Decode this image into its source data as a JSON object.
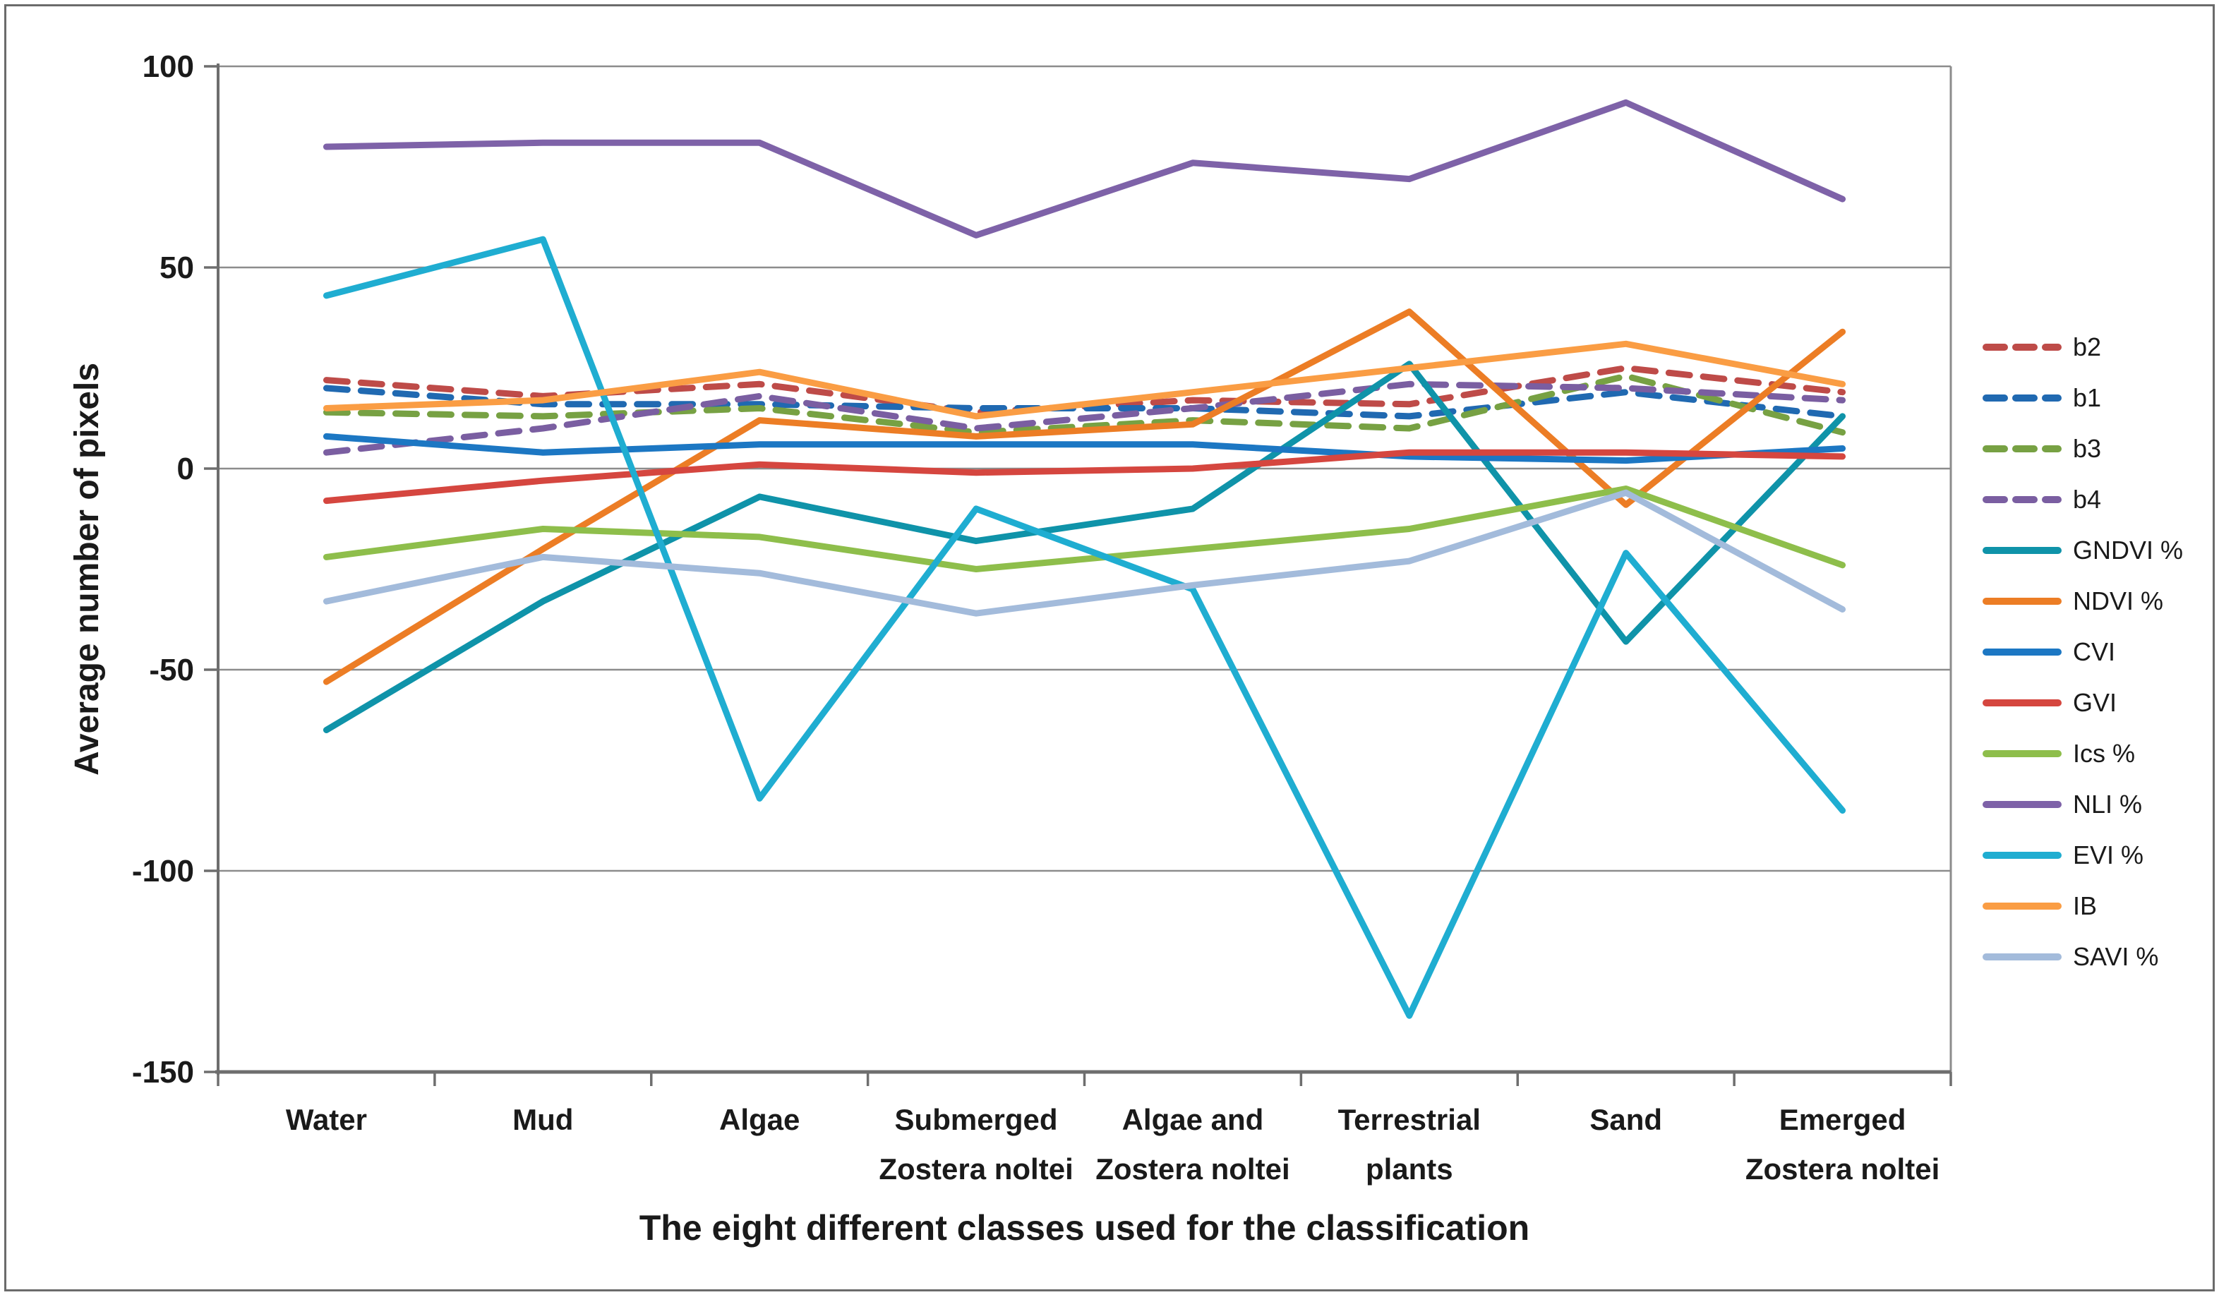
{
  "figure": {
    "y_axis_title": "Average number of pixels",
    "x_axis_title": "The eight different classes used for the classification"
  },
  "chart_data": {
    "type": "line",
    "title": "",
    "xlabel": "The eight different classes used for the classification",
    "ylabel": "Average number of pixels",
    "ylim": [
      -150,
      100
    ],
    "y_ticks": [
      100,
      50,
      0,
      -50,
      -100,
      -150
    ],
    "grid": true,
    "legend_position": "right",
    "axis_color": "#6e6e6e",
    "gridline_color": "#8c8c8c",
    "text_color": "#1a1a1a",
    "categories": [
      "Water",
      "Mud",
      "Algae",
      "Submerged Zostera noltei",
      "Algae and Zostera noltei",
      "Terrestrial plants",
      "Sand",
      "Emerged Zostera noltei"
    ],
    "category_label_lines": [
      [
        "Water"
      ],
      [
        "Mud"
      ],
      [
        "Algae"
      ],
      [
        "Submerged",
        "Zostera noltei"
      ],
      [
        "Algae and",
        "Zostera noltei"
      ],
      [
        "Terrestrial",
        "plants"
      ],
      [
        "Sand"
      ],
      [
        "Emerged",
        "Zostera noltei"
      ]
    ],
    "series": [
      {
        "name": "b2",
        "color": "#be4b48",
        "dash": true,
        "values": [
          22,
          18,
          21,
          14,
          17,
          16,
          25,
          19
        ]
      },
      {
        "name": "b1",
        "color": "#2069b1",
        "dash": true,
        "values": [
          20,
          16,
          16,
          15,
          15,
          13,
          19,
          13
        ]
      },
      {
        "name": "b3",
        "color": "#77a143",
        "dash": true,
        "values": [
          14,
          13,
          15,
          9,
          12,
          10,
          23,
          9
        ]
      },
      {
        "name": "b4",
        "color": "#7a5ea1",
        "dash": true,
        "values": [
          4,
          10,
          18,
          10,
          15,
          21,
          20,
          17
        ]
      },
      {
        "name": "GNDVI %",
        "color": "#0f93a9",
        "dash": false,
        "values": [
          -65,
          -33,
          -7,
          -18,
          -10,
          26,
          -43,
          13
        ]
      },
      {
        "name": "NDVI %",
        "color": "#ec7d25",
        "dash": false,
        "values": [
          -53,
          -20,
          12,
          8,
          11,
          39,
          -9,
          34
        ]
      },
      {
        "name": "CVI",
        "color": "#1c77c3",
        "dash": false,
        "values": [
          8,
          4,
          6,
          6,
          6,
          3,
          2,
          5
        ]
      },
      {
        "name": "GVI",
        "color": "#d5463f",
        "dash": false,
        "values": [
          -8,
          -3,
          1,
          -1,
          0,
          4,
          4,
          3
        ]
      },
      {
        "name": "Ics %",
        "color": "#8ebe4b",
        "dash": false,
        "values": [
          -22,
          -15,
          -17,
          -25,
          -20,
          -15,
          -5,
          -24
        ]
      },
      {
        "name": "NLI %",
        "color": "#7e62a8",
        "dash": false,
        "values": [
          80,
          81,
          81,
          58,
          76,
          72,
          91,
          67
        ]
      },
      {
        "name": "EVI %",
        "color": "#1fadd1",
        "dash": false,
        "values": [
          43,
          57,
          -82,
          -10,
          -30,
          -136,
          -21,
          -85
        ]
      },
      {
        "name": "IB",
        "color": "#fa9d44",
        "dash": false,
        "values": [
          15,
          17,
          24,
          13,
          19,
          25,
          31,
          21
        ]
      },
      {
        "name": "SAVI %",
        "color": "#a3bbdb",
        "dash": false,
        "values": [
          -33,
          -22,
          -26,
          -36,
          -29,
          -23,
          -6,
          -35
        ]
      }
    ]
  }
}
